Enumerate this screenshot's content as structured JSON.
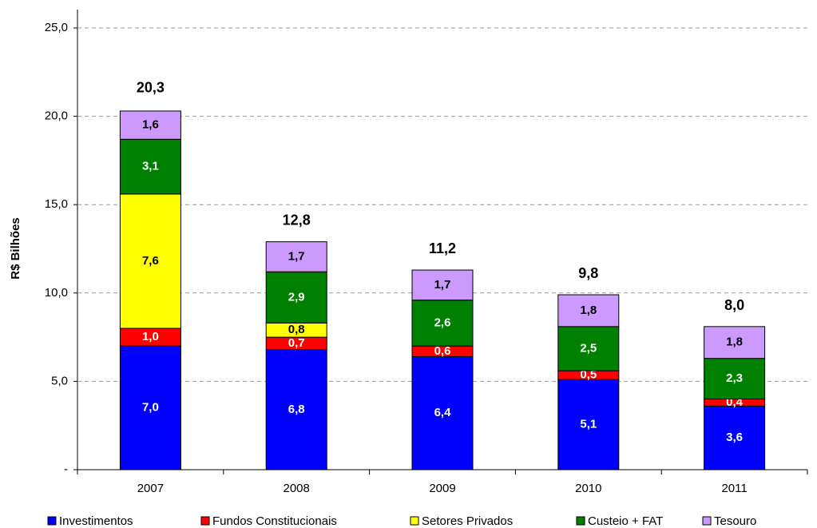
{
  "chart_data": {
    "type": "stacked-bar",
    "y_label": "R$ Bilhões",
    "categories": [
      "2007",
      "2008",
      "2009",
      "2010",
      "2011"
    ],
    "series": [
      {
        "name": "Investimentos",
        "color": "#0000ff",
        "label_color": "#ffffff",
        "values": [
          7.0,
          6.8,
          6.4,
          5.1,
          3.6
        ],
        "value_labels": [
          "7,0",
          "6,8",
          "6,4",
          "5,1",
          "3,6"
        ]
      },
      {
        "name": "Fundos Constitucionais",
        "color": "#ff0000",
        "label_color": "#ffffff",
        "values": [
          1.0,
          0.7,
          0.6,
          0.5,
          0.4
        ],
        "value_labels": [
          "1,0",
          "0,7",
          "0,6",
          "0,5",
          "0,4"
        ]
      },
      {
        "name": "Setores Privados",
        "color": "#ffff00",
        "label_color": "#000000",
        "values": [
          7.6,
          0.8,
          null,
          null,
          null
        ],
        "value_labels": [
          "7,6",
          "0,8",
          null,
          null,
          null
        ]
      },
      {
        "name": "Custeio + FAT",
        "color": "#008000",
        "label_color": "#ffffff",
        "values": [
          3.1,
          2.9,
          2.6,
          2.5,
          2.3
        ],
        "value_labels": [
          "3,1",
          "2,9",
          "2,6",
          "2,5",
          "2,3"
        ]
      },
      {
        "name": "Tesouro",
        "color": "#cc99ff",
        "label_color": "#000000",
        "values": [
          1.6,
          1.7,
          1.7,
          1.8,
          1.8
        ],
        "value_labels": [
          "1,6",
          "1,7",
          "1,7",
          "1,8",
          "1,8"
        ]
      }
    ],
    "totals": [
      20.3,
      12.8,
      11.2,
      9.8,
      8.0
    ],
    "total_labels": [
      "20,3",
      "12,8",
      "11,2",
      "9,8",
      "8,0"
    ],
    "ylim": [
      0,
      25
    ],
    "yticks": [
      {
        "value": 0,
        "label": "-"
      },
      {
        "value": 5,
        "label": "5,0"
      },
      {
        "value": 10,
        "label": "10,0"
      },
      {
        "value": 15,
        "label": "15,0"
      },
      {
        "value": 20,
        "label": "20,0"
      },
      {
        "value": 25,
        "label": "25,0"
      }
    ],
    "grid": true,
    "legend": "bottom"
  }
}
